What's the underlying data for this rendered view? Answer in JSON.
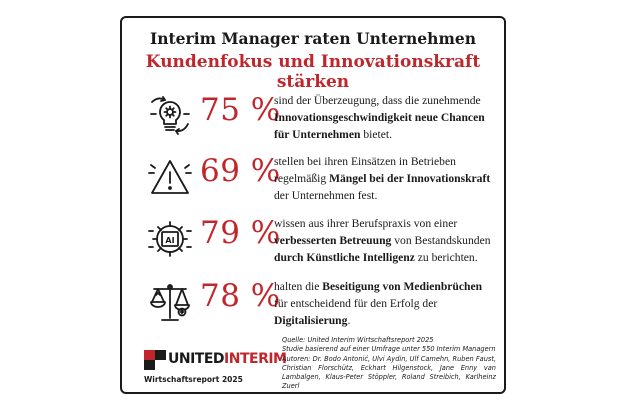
{
  "header": {
    "title": "Interim Manager raten Unternehmen",
    "subtitle": "Kundenfokus und Innovationskraft stärken"
  },
  "stats": [
    {
      "icon": "lightbulb-gear-icon",
      "percent": "75 %",
      "text_before": "sind der Überzeugung, dass die zunehmende ",
      "text_bold": "Innovationsgeschwindigkeit neue Chancen für Unternehmen",
      "text_after": " bietet."
    },
    {
      "icon": "warning-triangle-icon",
      "percent": "69 %",
      "text_before": "stellen bei ihren Einsätzen in Betrieben regelmäßig ",
      "text_bold": "Mängel bei der Innovationskraft",
      "text_after": " der Unternehmen fest."
    },
    {
      "icon": "ai-gear-icon",
      "percent": "79 %",
      "text_before": "wissen aus ihrer Berufspraxis von einer ",
      "text_bold": "verbesserten Betreuung",
      "text_mid": " von Bestandskunden ",
      "text_bold2": "durch Künstliche Intelligenz",
      "text_after": " zu berichten."
    },
    {
      "icon": "balance-scale-icon",
      "percent": "78 %",
      "text_before": "halten die ",
      "text_bold": "Beseitigung von Medienbrüchen",
      "text_mid": " für entscheidend für den Erfolg der ",
      "text_bold2": "Digitalisierung",
      "text_after": "."
    }
  ],
  "footer": {
    "logo_part1": "UNITED",
    "logo_part2": "INTERIM",
    "report_label": "Wirtschaftsreport 2025",
    "source_line1": "Quelle: United Interim Wirtschaftsreport 2025",
    "source_line2": "Studie basierend auf einer Umfrage unter 550 Interim Managern",
    "source_line3": "Autoren: Dr. Bodo Antonić, Ulvi Aydin, Ulf Camehn, Ruben Faust, Christian Florschütz, Eckhart Hilgenstock, Jane Enny van Lambalgen, Klaus-Peter Stöppler, Roland Streibich, Karlheinz Zuerl"
  },
  "colors": {
    "accent": "#c0272d",
    "text": "#1a1a1a"
  }
}
